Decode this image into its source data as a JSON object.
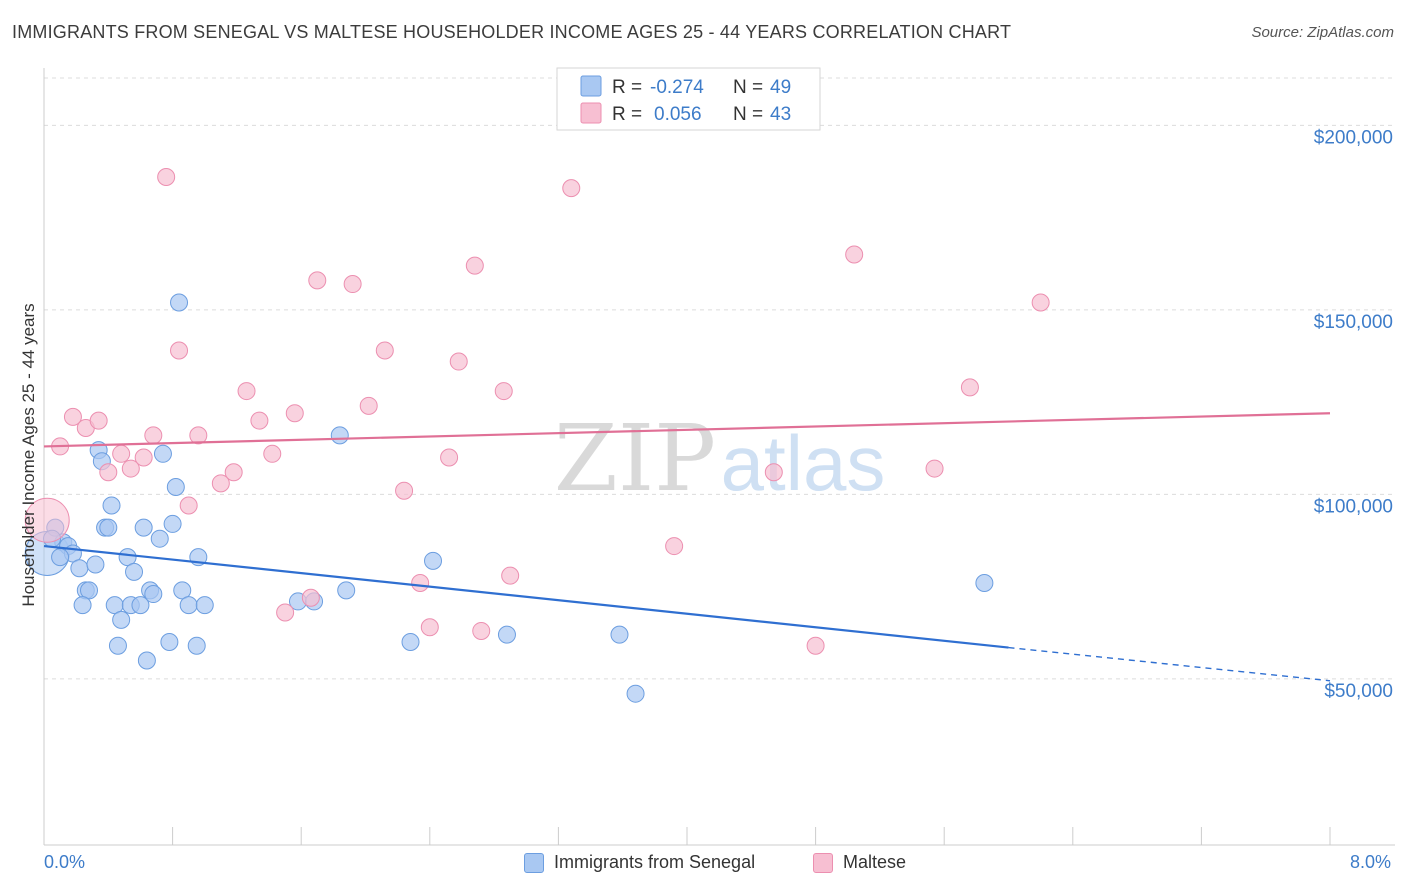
{
  "header": {
    "title": "IMMIGRANTS FROM SENEGAL VS MALTESE HOUSEHOLDER INCOME AGES 25 - 44 YEARS CORRELATION CHART",
    "source": "Source: ZipAtlas.com"
  },
  "watermark": {
    "zip": "ZIP",
    "atlas": "atlas"
  },
  "colors": {
    "blue_fill": "#a9c8f2",
    "blue_stroke": "#6c9ee0",
    "blue_line": "#2f6fd1",
    "pink_fill": "#f7bfd2",
    "pink_stroke": "#ec8fb0",
    "pink_line": "#e07096",
    "value_text": "#3d7cc9",
    "grid": "#dcdcdc"
  },
  "stats_legend": [
    {
      "r_label": "R =",
      "r_value": "-0.274",
      "n_label": "N =",
      "n_value": "49"
    },
    {
      "r_label": "R =",
      "r_value": "0.056",
      "n_label": "N =",
      "n_value": "43"
    }
  ],
  "x_axis_labels": {
    "min": "0.0%",
    "max": "8.0%"
  },
  "bottom_legend": [
    "Immigrants from Senegal",
    "Maltese"
  ],
  "chart_data": {
    "type": "scatter",
    "title": "IMMIGRANTS FROM SENEGAL VS MALTESE HOUSEHOLDER INCOME AGES 25 - 44 YEARS CORRELATION CHART",
    "xlabel": "",
    "ylabel": "Householder Income Ages 25 - 44 years",
    "xlim": [
      0,
      8
    ],
    "ylim": [
      5000,
      215000
    ],
    "y_ticks": [
      {
        "value": 50000,
        "label": "$50,000"
      },
      {
        "value": 100000,
        "label": "$100,000"
      },
      {
        "value": 150000,
        "label": "$150,000"
      },
      {
        "value": 200000,
        "label": "$200,000"
      }
    ],
    "grid": true,
    "legend_position": "top-center",
    "series": [
      {
        "name": "Immigrants from Senegal",
        "color": "#a9c8f2",
        "trend": {
          "x": [
            0,
            6.0
          ],
          "y": [
            86000,
            58500
          ],
          "dashed_to": [
            8.0,
            49500
          ]
        },
        "points": [
          {
            "x": 0.02,
            "y": 84000,
            "big": true
          },
          {
            "x": 0.07,
            "y": 91000
          },
          {
            "x": 0.12,
            "y": 87000
          },
          {
            "x": 0.15,
            "y": 86000
          },
          {
            "x": 0.18,
            "y": 84000
          },
          {
            "x": 0.1,
            "y": 83000
          },
          {
            "x": 0.22,
            "y": 80000
          },
          {
            "x": 0.26,
            "y": 74000
          },
          {
            "x": 0.28,
            "y": 74000
          },
          {
            "x": 0.24,
            "y": 70000
          },
          {
            "x": 0.32,
            "y": 81000
          },
          {
            "x": 0.34,
            "y": 112000
          },
          {
            "x": 0.36,
            "y": 109000
          },
          {
            "x": 0.38,
            "y": 91000
          },
          {
            "x": 0.4,
            "y": 91000
          },
          {
            "x": 0.42,
            "y": 97000
          },
          {
            "x": 0.44,
            "y": 70000
          },
          {
            "x": 0.46,
            "y": 59000
          },
          {
            "x": 0.48,
            "y": 66000
          },
          {
            "x": 0.52,
            "y": 83000
          },
          {
            "x": 0.54,
            "y": 70000
          },
          {
            "x": 0.56,
            "y": 79000
          },
          {
            "x": 0.6,
            "y": 70000
          },
          {
            "x": 0.62,
            "y": 91000
          },
          {
            "x": 0.64,
            "y": 55000
          },
          {
            "x": 0.66,
            "y": 74000
          },
          {
            "x": 0.68,
            "y": 73000
          },
          {
            "x": 0.72,
            "y": 88000
          },
          {
            "x": 0.74,
            "y": 111000
          },
          {
            "x": 0.78,
            "y": 60000
          },
          {
            "x": 0.8,
            "y": 92000
          },
          {
            "x": 0.82,
            "y": 102000
          },
          {
            "x": 0.84,
            "y": 152000
          },
          {
            "x": 0.86,
            "y": 74000
          },
          {
            "x": 0.9,
            "y": 70000
          },
          {
            "x": 0.95,
            "y": 59000
          },
          {
            "x": 0.96,
            "y": 83000
          },
          {
            "x": 1.0,
            "y": 70000
          },
          {
            "x": 1.58,
            "y": 71000
          },
          {
            "x": 1.68,
            "y": 71000
          },
          {
            "x": 1.84,
            "y": 116000
          },
          {
            "x": 1.88,
            "y": 74000
          },
          {
            "x": 2.28,
            "y": 60000
          },
          {
            "x": 2.42,
            "y": 82000
          },
          {
            "x": 2.88,
            "y": 62000
          },
          {
            "x": 3.58,
            "y": 62000
          },
          {
            "x": 3.68,
            "y": 46000
          },
          {
            "x": 5.85,
            "y": 76000
          },
          {
            "x": 0.05,
            "y": 88000
          }
        ]
      },
      {
        "name": "Maltese",
        "color": "#f7bfd2",
        "trend": {
          "x": [
            0,
            8.0
          ],
          "y": [
            113000,
            122000
          ]
        },
        "points": [
          {
            "x": 0.02,
            "y": 93000,
            "big": true
          },
          {
            "x": 0.1,
            "y": 113000
          },
          {
            "x": 0.18,
            "y": 121000
          },
          {
            "x": 0.26,
            "y": 118000
          },
          {
            "x": 0.34,
            "y": 120000
          },
          {
            "x": 0.4,
            "y": 106000
          },
          {
            "x": 0.48,
            "y": 111000
          },
          {
            "x": 0.54,
            "y": 107000
          },
          {
            "x": 0.62,
            "y": 110000
          },
          {
            "x": 0.68,
            "y": 116000
          },
          {
            "x": 0.76,
            "y": 186000
          },
          {
            "x": 0.84,
            "y": 139000
          },
          {
            "x": 0.9,
            "y": 97000
          },
          {
            "x": 0.96,
            "y": 116000
          },
          {
            "x": 1.1,
            "y": 103000
          },
          {
            "x": 1.18,
            "y": 106000
          },
          {
            "x": 1.26,
            "y": 128000
          },
          {
            "x": 1.34,
            "y": 120000
          },
          {
            "x": 1.42,
            "y": 111000
          },
          {
            "x": 1.5,
            "y": 68000
          },
          {
            "x": 1.56,
            "y": 122000
          },
          {
            "x": 1.66,
            "y": 72000
          },
          {
            "x": 1.7,
            "y": 158000
          },
          {
            "x": 1.92,
            "y": 157000
          },
          {
            "x": 2.02,
            "y": 124000
          },
          {
            "x": 2.12,
            "y": 139000
          },
          {
            "x": 2.24,
            "y": 101000
          },
          {
            "x": 2.34,
            "y": 76000
          },
          {
            "x": 2.4,
            "y": 64000
          },
          {
            "x": 2.52,
            "y": 110000
          },
          {
            "x": 2.58,
            "y": 136000
          },
          {
            "x": 2.68,
            "y": 162000
          },
          {
            "x": 2.72,
            "y": 63000
          },
          {
            "x": 2.86,
            "y": 128000
          },
          {
            "x": 2.9,
            "y": 78000
          },
          {
            "x": 3.28,
            "y": 183000
          },
          {
            "x": 3.92,
            "y": 86000
          },
          {
            "x": 4.54,
            "y": 106000
          },
          {
            "x": 4.8,
            "y": 59000
          },
          {
            "x": 5.04,
            "y": 165000
          },
          {
            "x": 5.54,
            "y": 107000
          },
          {
            "x": 5.76,
            "y": 129000
          },
          {
            "x": 6.2,
            "y": 152000
          }
        ]
      }
    ]
  }
}
